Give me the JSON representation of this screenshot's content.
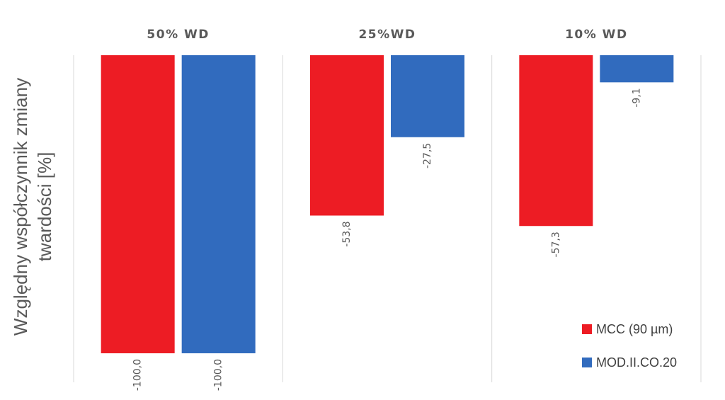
{
  "chart_data": {
    "type": "bar",
    "ylabel": "Względny współczynnik zmiany twardości [%]",
    "ylabel_lines": [
      "Względny współczynnik zmiany",
      "twardości [%]"
    ],
    "categories": [
      "50% WD",
      "25%WD",
      "10% WD"
    ],
    "ylim": [
      -100,
      0
    ],
    "grid": "vertical category separators",
    "legend_position": "bottom-right",
    "series": [
      {
        "name": "MCC (90 µm)",
        "color": "#ed1c24",
        "values": [
          -100.0,
          -53.8,
          -57.3
        ],
        "labels": [
          "-100,0",
          "-53,8",
          "-57,3"
        ]
      },
      {
        "name": "MOD.II.CO.20",
        "color": "#316bbe",
        "values": [
          -100.0,
          -27.5,
          -9.1
        ],
        "labels": [
          "-100,0",
          "-27,5",
          "-9,1"
        ]
      }
    ]
  }
}
